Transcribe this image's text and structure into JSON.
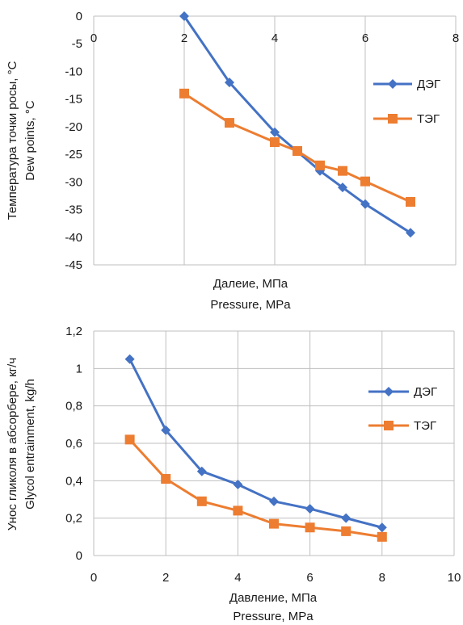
{
  "chart_data": [
    {
      "type": "line",
      "x_tick_labels": [
        "0",
        "2",
        "4",
        "6",
        "8"
      ],
      "y_tick_labels": [
        "0",
        "-5",
        "-10",
        "-15",
        "-20",
        "-25",
        "-30",
        "-35",
        "-40",
        "-45"
      ],
      "xlim": [
        0,
        8
      ],
      "ylim": [
        -45,
        0
      ],
      "xlabel": [
        "Далеие, МПа",
        "Pressure, MPa"
      ],
      "ylabel": [
        "Температура точки росы, °C",
        "Dew points, °C"
      ],
      "grid": "vertical",
      "legend_position": "right",
      "series": [
        {
          "name": "ДЭГ",
          "color": "#4472C4",
          "marker": "diamond",
          "x": [
            2,
            3,
            4,
            5,
            5.5,
            6,
            7
          ],
          "y": [
            0,
            -12,
            -21,
            -28,
            -31,
            -34,
            -39.2
          ]
        },
        {
          "name": "ТЭГ",
          "color": "#ED7D31",
          "marker": "square",
          "x": [
            2,
            3,
            4,
            4.5,
            5,
            5.5,
            6,
            7
          ],
          "y": [
            -14,
            -19.3,
            -22.8,
            -24.4,
            -27,
            -28,
            -29.9,
            -33.6
          ]
        }
      ]
    },
    {
      "type": "line",
      "x_tick_labels": [
        "0",
        "2",
        "4",
        "6",
        "8",
        "10"
      ],
      "y_tick_labels": [
        "0",
        "0,2",
        "0,4",
        "0,6",
        "0,8",
        "1",
        "1,2"
      ],
      "xlim": [
        0,
        10
      ],
      "ylim": [
        0,
        1.2
      ],
      "xlabel": [
        "Давление, МПа",
        "Pressure, MPa"
      ],
      "ylabel": [
        "Унос гликоля в абсорбере, кг/ч",
        "Glycol entrainment, kg/h"
      ],
      "grid": "both",
      "legend_position": "right",
      "series": [
        {
          "name": "ДЭГ",
          "color": "#4472C4",
          "marker": "diamond",
          "x": [
            1,
            2,
            3,
            4,
            5,
            6,
            7,
            8
          ],
          "y": [
            1.05,
            0.67,
            0.45,
            0.38,
            0.29,
            0.25,
            0.2,
            0.15
          ]
        },
        {
          "name": "ТЭГ",
          "color": "#ED7D31",
          "marker": "square",
          "x": [
            1,
            2,
            3,
            4,
            5,
            6,
            7,
            8
          ],
          "y": [
            0.62,
            0.41,
            0.29,
            0.24,
            0.17,
            0.15,
            0.13,
            0.1
          ]
        }
      ]
    }
  ]
}
